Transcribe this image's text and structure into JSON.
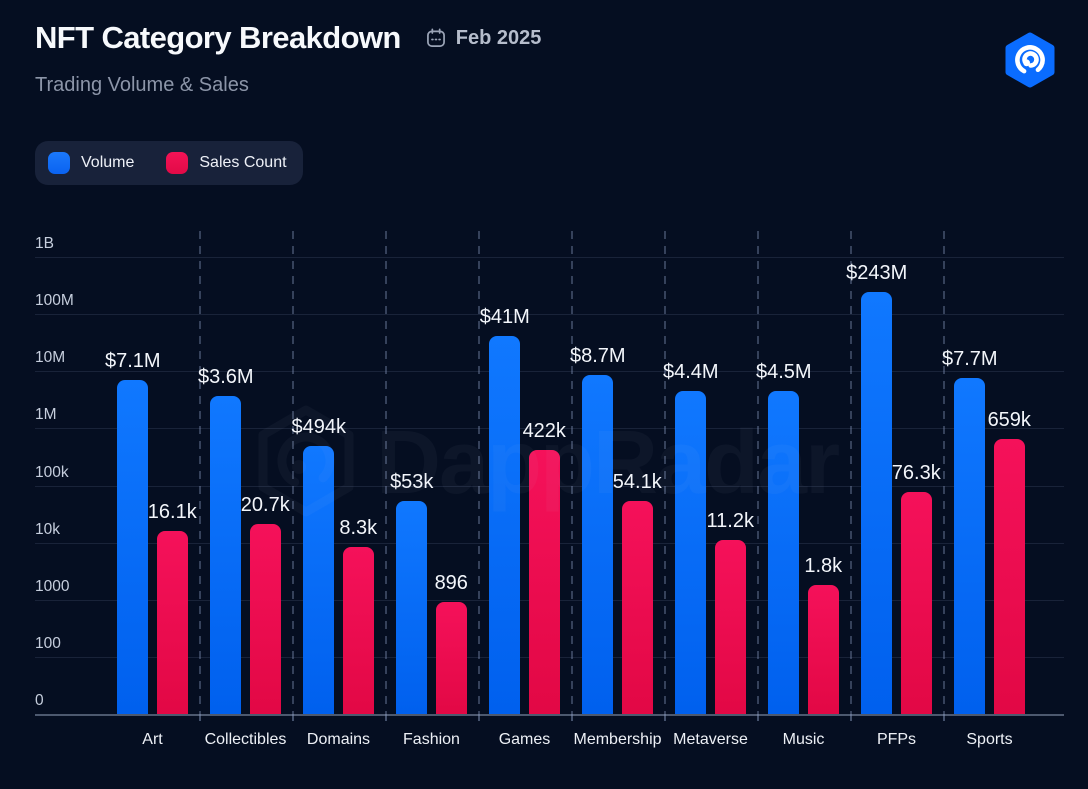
{
  "header": {
    "title": "NFT Category Breakdown",
    "date": "Feb 2025",
    "subtitle": "Trading Volume & Sales"
  },
  "legend": {
    "items": [
      {
        "label": "Volume",
        "color": "#0f6ef7"
      },
      {
        "label": "Sales Count",
        "color": "#ec0c4f"
      }
    ]
  },
  "watermark": {
    "text": "DappRadar"
  },
  "colors": {
    "background": "#050e21",
    "volume_bar": "#0a6cf9",
    "sales_bar": "#ee0c50",
    "logo_blue": "#0a6cff",
    "grid": "#7e8fb2",
    "text_primary": "#f7f9fc",
    "text_muted": "#8c95a8"
  },
  "chart_data": {
    "type": "bar",
    "title": "NFT Category Breakdown",
    "subtitle": "Trading Volume & Sales",
    "period": "Feb 2025",
    "y_scale": "log",
    "y_ticks": [
      "1B",
      "100M",
      "10M",
      "1M",
      "100k",
      "10k",
      "1000",
      "100",
      "0"
    ],
    "ylim_log": [
      0,
      1000000000
    ],
    "grid": {
      "horizontal": true,
      "vertical_dashed": true
    },
    "legend_position": "top-left",
    "categories": [
      "Art",
      "Collectibles",
      "Domains",
      "Fashion",
      "Games",
      "Membership",
      "Metaverse",
      "Music",
      "PFPs",
      "Sports"
    ],
    "series": [
      {
        "name": "Volume",
        "color": "#0a6cf9",
        "values": [
          7100000,
          3600000,
          494000,
          53000,
          41000000,
          8700000,
          4400000,
          4500000,
          243000000,
          7700000
        ],
        "labels": [
          "$7.1M",
          "$3.6M",
          "$494k",
          "$53k",
          "$41M",
          "$8.7M",
          "$4.4M",
          "$4.5M",
          "$243M",
          "$7.7M"
        ]
      },
      {
        "name": "Sales Count",
        "color": "#ee0c50",
        "values": [
          16100,
          20700,
          8300,
          896,
          422000,
          54100,
          11200,
          1800,
          76300,
          659000
        ],
        "labels": [
          "16.1k",
          "20.7k",
          "8.3k",
          "896",
          "422k",
          "54.1k",
          "11.2k",
          "1.8k",
          "76.3k",
          "659k"
        ]
      }
    ]
  }
}
